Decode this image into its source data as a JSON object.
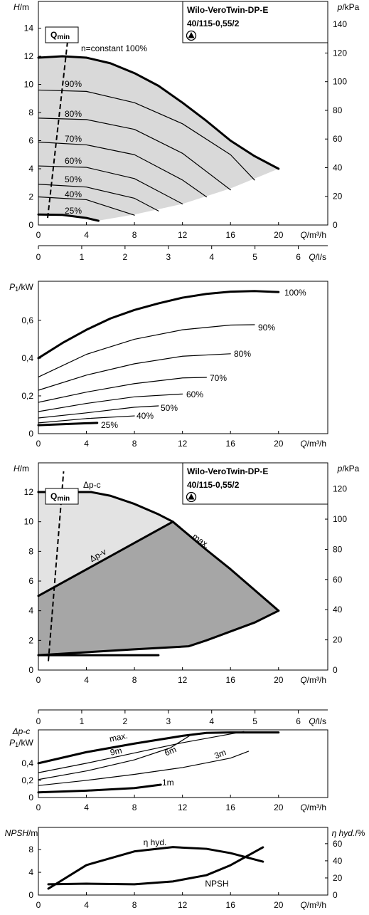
{
  "chart_data": [
    {
      "type": "line",
      "ylabel": [
        "H",
        "/m"
      ],
      "y2label": [
        "p",
        "/kPa"
      ],
      "xlabel": [
        "Q",
        "/m³/h"
      ],
      "model": [
        "Wilo-VeroTwin-DP-E",
        "40/115-0,55/2"
      ],
      "xlim": [
        0,
        24.1
      ],
      "xticks": [
        0,
        4,
        8,
        12,
        16,
        20
      ],
      "ylim": [
        0,
        15.9
      ],
      "yticks": [
        0,
        2,
        4,
        6,
        8,
        10,
        12,
        14
      ],
      "y2lim": [
        0,
        156
      ],
      "y2ticks": [
        0,
        20,
        40,
        60,
        80,
        100,
        120,
        140
      ],
      "regions": [
        {
          "color": "#d9d9d9",
          "x": [
            0,
            2,
            4,
            6,
            8,
            10,
            12,
            14,
            16,
            18,
            20,
            16,
            12,
            8,
            4.9,
            4,
            2,
            0
          ],
          "values": [
            11.9,
            12.0,
            11.9,
            11.5,
            10.8,
            9.9,
            8.7,
            7.4,
            6.0,
            4.9,
            4.0,
            2.6,
            1.5,
            0.75,
            0.3,
            0.5,
            0.72,
            0.75
          ]
        }
      ],
      "qmin": {
        "label": [
          "Q",
          "min"
        ],
        "x": [
          0.77,
          2.5
        ],
        "values": [
          0.5,
          13.6
        ]
      },
      "series": [
        {
          "name": "n=constant 100%",
          "thick": true,
          "color": "#000000",
          "x": [
            0,
            2,
            4,
            6,
            8,
            10,
            12,
            14,
            16,
            18,
            20
          ],
          "values": [
            11.9,
            12.0,
            11.9,
            11.5,
            10.8,
            9.9,
            8.7,
            7.4,
            6.0,
            4.9,
            4.0
          ]
        },
        {
          "name": "90%",
          "thick": false,
          "color": "#000000",
          "x": [
            0,
            4,
            8,
            12,
            16,
            18
          ],
          "values": [
            9.6,
            9.5,
            8.7,
            7.2,
            5.0,
            3.2
          ]
        },
        {
          "name": "80%",
          "thick": false,
          "color": "#000000",
          "x": [
            0,
            4,
            8,
            12,
            16
          ],
          "values": [
            7.6,
            7.5,
            6.8,
            5.1,
            2.5
          ]
        },
        {
          "name": "70%",
          "thick": false,
          "color": "#000000",
          "x": [
            0,
            4,
            8,
            12,
            14
          ],
          "values": [
            5.9,
            5.7,
            5.0,
            3.2,
            2.0
          ]
        },
        {
          "name": "60%",
          "thick": false,
          "color": "#000000",
          "x": [
            0,
            4,
            8,
            12
          ],
          "values": [
            4.2,
            4.1,
            3.3,
            1.5
          ]
        },
        {
          "name": "50%",
          "thick": false,
          "color": "#000000",
          "x": [
            0,
            4,
            8,
            10
          ],
          "values": [
            2.9,
            2.7,
            1.9,
            1.0
          ]
        },
        {
          "name": "40%",
          "thick": false,
          "color": "#000000",
          "x": [
            0,
            4,
            8
          ],
          "values": [
            2.0,
            1.8,
            0.7
          ]
        },
        {
          "name": "25%",
          "thick": true,
          "color": "#000000",
          "x": [
            0,
            2,
            4,
            5
          ],
          "values": [
            0.75,
            0.72,
            0.5,
            0.3
          ]
        }
      ]
    },
    {
      "type": "axis",
      "xlabel": [
        "Q",
        "/l/s"
      ],
      "xlim": [
        0,
        6.68
      ],
      "xticks": [
        0,
        1,
        2,
        3,
        4,
        5,
        6
      ]
    },
    {
      "type": "line",
      "ylabel": [
        "P",
        "1",
        "/kW"
      ],
      "xlabel": [
        "Q",
        "/m³/h"
      ],
      "xlim": [
        0,
        24.1
      ],
      "xticks": [
        0,
        4,
        8,
        12,
        16,
        20
      ],
      "ylim": [
        0,
        0.807
      ],
      "yticks": [
        0,
        {
          "value": 0.2,
          "label": "0,2"
        },
        {
          "value": 0.4,
          "label": "0,4"
        },
        {
          "value": 0.6,
          "label": "0,6"
        }
      ],
      "series": [
        {
          "name": "100%",
          "thick": true,
          "color": "#000000",
          "x": [
            0,
            2,
            4,
            6,
            8,
            10,
            12,
            14,
            16,
            18,
            20
          ],
          "values": [
            0.4,
            0.48,
            0.55,
            0.61,
            0.655,
            0.69,
            0.72,
            0.74,
            0.752,
            0.755,
            0.75
          ]
        },
        {
          "name": "90%",
          "thick": false,
          "color": "#000000",
          "x": [
            0,
            4,
            8,
            12,
            16,
            18
          ],
          "values": [
            0.3,
            0.42,
            0.5,
            0.55,
            0.575,
            0.577
          ]
        },
        {
          "name": "80%",
          "thick": false,
          "color": "#000000",
          "x": [
            0,
            4,
            8,
            12,
            16
          ],
          "values": [
            0.23,
            0.31,
            0.37,
            0.41,
            0.423
          ]
        },
        {
          "name": "70%",
          "thick": false,
          "color": "#000000",
          "x": [
            0,
            4,
            8,
            12,
            14
          ],
          "values": [
            0.166,
            0.22,
            0.265,
            0.295,
            0.298
          ]
        },
        {
          "name": "60%",
          "thick": false,
          "color": "#000000",
          "x": [
            0,
            4,
            8,
            12
          ],
          "values": [
            0.117,
            0.16,
            0.195,
            0.21
          ]
        },
        {
          "name": "50%",
          "thick": false,
          "color": "#000000",
          "x": [
            0,
            4,
            8,
            10
          ],
          "values": [
            0.083,
            0.11,
            0.14,
            0.147
          ]
        },
        {
          "name": "40%",
          "thick": false,
          "color": "#000000",
          "x": [
            0,
            4,
            8
          ],
          "values": [
            0.057,
            0.08,
            0.094
          ]
        },
        {
          "name": "25%",
          "thick": true,
          "color": "#000000",
          "x": [
            0,
            2,
            4,
            4.9
          ],
          "values": [
            0.045,
            0.05,
            0.055,
            0.057
          ]
        }
      ]
    },
    {
      "type": "line",
      "ylabel": [
        "H",
        "/m"
      ],
      "y2label": [
        "p",
        "/kPa"
      ],
      "xlabel": [
        "Q",
        "/m³/h"
      ],
      "model": [
        "Wilo-VeroTwin-DP-E",
        "40/115-0,55/2"
      ],
      "xlim": [
        0,
        24.1
      ],
      "xticks": [
        0,
        4,
        8,
        12,
        16,
        20
      ],
      "ylim": [
        0,
        13.97
      ],
      "yticks": [
        0,
        2,
        4,
        6,
        8,
        10,
        12
      ],
      "y2lim": [
        0,
        137.3
      ],
      "y2ticks": [
        0,
        20,
        40,
        60,
        80,
        100,
        120
      ],
      "regions": [
        {
          "color": "#e3e3e3",
          "x": [
            0,
            4.4,
            6,
            8,
            10,
            11.2,
            0
          ],
          "values": [
            12,
            12,
            11.75,
            11.2,
            10.5,
            10,
            5
          ]
        },
        {
          "color": "#a6a6a6",
          "x": [
            0,
            11.2,
            14,
            16,
            18,
            20,
            18,
            16,
            14,
            12.5,
            8,
            4,
            0
          ],
          "values": [
            5,
            10,
            8.1,
            6.8,
            5.4,
            4.0,
            3.2,
            2.6,
            2.0,
            1.6,
            1.4,
            1.2,
            1.0
          ]
        }
      ],
      "qmin": {
        "label": [
          "Q",
          "min"
        ],
        "x": [
          0.83,
          2.1
        ],
        "values": [
          0.6,
          13.4
        ]
      },
      "series": [
        {
          "name": "max.",
          "thick": true,
          "color": "#000000",
          "x": [
            0,
            4.4,
            6,
            8,
            10,
            11.2,
            14,
            16,
            18,
            20
          ],
          "values": [
            12,
            12,
            11.75,
            11.2,
            10.5,
            10,
            8.1,
            6.8,
            5.4,
            4.0
          ]
        },
        {
          "name": "Δp-c",
          "thick": true,
          "color": "#000000",
          "x": [
            0,
            4.4
          ],
          "values": [
            12,
            12
          ]
        },
        {
          "name": "Δp-v",
          "thick": true,
          "color": "#000000",
          "x": [
            0,
            11.2
          ],
          "values": [
            5,
            10
          ]
        },
        {
          "thick": true,
          "color": "#000000",
          "x": [
            0,
            4,
            8,
            12.5,
            14,
            16,
            18,
            20
          ],
          "values": [
            1.0,
            1.2,
            1.4,
            1.6,
            2.0,
            2.6,
            3.2,
            4.0
          ]
        },
        {
          "thick": true,
          "color": "#000000",
          "x": [
            0,
            10
          ],
          "values": [
            1.0,
            1.0
          ]
        }
      ]
    },
    {
      "type": "axis",
      "xlabel": [
        "Q",
        "/l/s"
      ],
      "xlim": [
        0,
        6.68
      ],
      "xticks": [
        0,
        1,
        2,
        3,
        4,
        5,
        6
      ]
    },
    {
      "type": "line",
      "ylabel_top": "Δp-c",
      "ylabel": [
        "P",
        "1",
        "/kW"
      ],
      "xlabel": [
        "Q",
        "/m³/h"
      ],
      "xlim": [
        0,
        24.1
      ],
      "xticks": [
        0,
        4,
        8,
        12,
        16,
        20
      ],
      "ylim": [
        0,
        0.79
      ],
      "yticks": [
        0,
        {
          "value": 0.2,
          "label": "0,2"
        },
        {
          "value": 0.4,
          "label": "0,4"
        }
      ],
      "series": [
        {
          "name": "max.",
          "thick": true,
          "color": "#000000",
          "x": [
            0,
            4,
            8,
            12,
            14,
            16,
            20
          ],
          "values": [
            0.4,
            0.53,
            0.63,
            0.72,
            0.755,
            0.76,
            0.76
          ]
        },
        {
          "name": "9m",
          "thick": false,
          "color": "#000000",
          "x": [
            0,
            4,
            8,
            12,
            17.1
          ],
          "values": [
            0.29,
            0.4,
            0.52,
            0.64,
            0.77
          ]
        },
        {
          "name": "6m",
          "thick": false,
          "color": "#000000",
          "x": [
            0,
            4,
            8,
            11,
            12.8
          ],
          "values": [
            0.21,
            0.31,
            0.44,
            0.58,
            0.74
          ]
        },
        {
          "name": "3m",
          "thick": false,
          "color": "#000000",
          "x": [
            0,
            4,
            8,
            12,
            16,
            17.5
          ],
          "values": [
            0.14,
            0.2,
            0.27,
            0.35,
            0.46,
            0.54
          ]
        },
        {
          "name": "1m",
          "thick": true,
          "color": "#000000",
          "x": [
            0,
            4,
            8,
            10.2
          ],
          "values": [
            0.06,
            0.08,
            0.11,
            0.15
          ]
        }
      ]
    },
    {
      "type": "line",
      "ylabel": [
        "NPSH",
        "/m"
      ],
      "y2label": [
        "η hyd.",
        "/%"
      ],
      "xlabel": [
        "Q",
        "/m³/h"
      ],
      "xlim": [
        0,
        24.1
      ],
      "xticks": [
        0,
        4,
        8,
        12,
        16,
        20
      ],
      "ylim": [
        0,
        11.9
      ],
      "yticks": [
        0,
        4,
        8
      ],
      "y2lim": [
        0,
        79
      ],
      "y2ticks": [
        0,
        20,
        40,
        60
      ],
      "series": [
        {
          "name": "η hyd.",
          "axis": "y2",
          "thick": true,
          "color": "#000000",
          "x": [
            0.83,
            4,
            8,
            11.2,
            14,
            16,
            18.7
          ],
          "values": [
            7.5,
            35,
            51,
            56,
            54,
            49,
            39
          ]
        },
        {
          "name": "NPSH",
          "thick": true,
          "color": "#000000",
          "x": [
            0.83,
            4,
            8,
            11.2,
            14,
            16,
            18.7
          ],
          "values": [
            1.9,
            2.0,
            1.9,
            2.4,
            3.5,
            5.25,
            8.4
          ]
        }
      ]
    }
  ]
}
